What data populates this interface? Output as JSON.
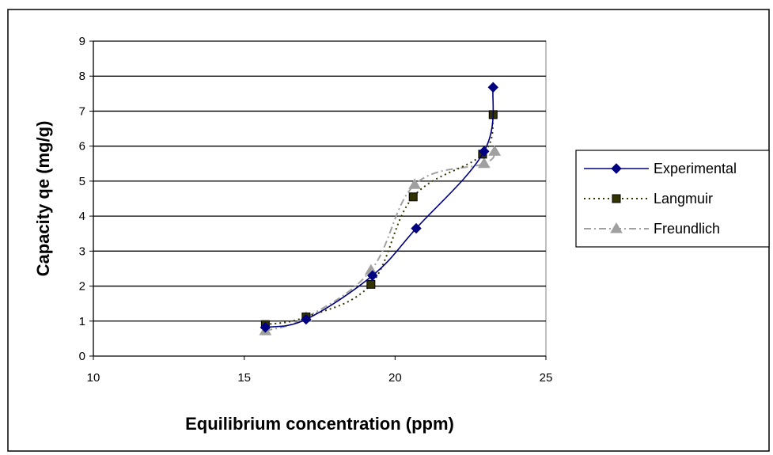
{
  "chart_data": {
    "type": "line",
    "title": "",
    "xlabel": "Equilibrium concentration (ppm)",
    "ylabel": "Capacity qe (mg/g)",
    "xlim": [
      10,
      25
    ],
    "ylim": [
      0,
      9
    ],
    "x_ticks": [
      "10",
      "15",
      "20",
      "25"
    ],
    "y_ticks": [
      "0",
      "1",
      "2",
      "3",
      "4",
      "5",
      "6",
      "7",
      "8",
      "9"
    ],
    "grid": "horizontal",
    "legend_position": "right",
    "series": [
      {
        "name": "Experimental",
        "color": "#000080",
        "line_style": "solid",
        "marker": "diamond",
        "x": [
          15.7,
          17.05,
          19.25,
          20.7,
          22.95,
          23.25
        ],
        "y": [
          0.82,
          1.05,
          2.3,
          3.65,
          5.85,
          7.68
        ]
      },
      {
        "name": "Langmuir",
        "color": "#333300",
        "line_style": "dotted",
        "marker": "square",
        "x": [
          15.7,
          17.05,
          19.2,
          20.6,
          22.9,
          23.25
        ],
        "y": [
          0.9,
          1.12,
          2.05,
          4.55,
          5.77,
          6.9
        ]
      },
      {
        "name": "Freundlich",
        "color": "#a0a0a0",
        "line_style": "dash-dot",
        "marker": "triangle",
        "x": [
          15.7,
          17.05,
          19.2,
          20.65,
          22.95,
          23.3
        ],
        "y": [
          0.72,
          1.1,
          2.45,
          4.9,
          5.5,
          5.85
        ]
      }
    ]
  }
}
